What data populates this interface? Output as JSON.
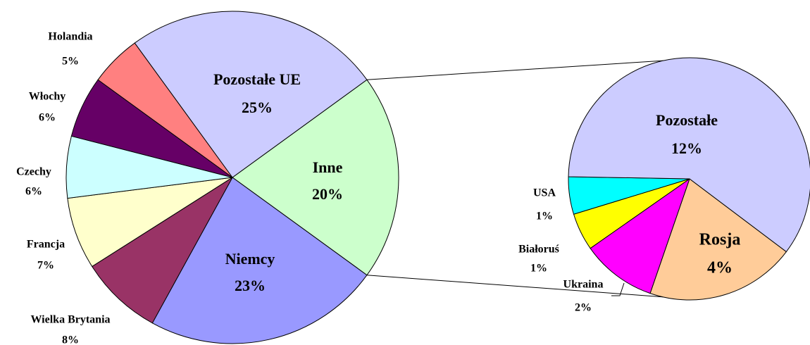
{
  "chart_data": [
    {
      "type": "pie",
      "categories": [
        "Inne",
        "Niemcy",
        "Wielka Brytania",
        "Francja",
        "Czechy",
        "Włochy",
        "Holandia",
        "Pozostałe UE"
      ],
      "values": [
        20,
        23,
        8,
        7,
        6,
        6,
        5,
        25
      ],
      "value_labels": [
        "20%",
        "23%",
        "8%",
        "7%",
        "6%",
        "6%",
        "5%",
        "25%"
      ],
      "colors": [
        "#ccffcc",
        "#9999ff",
        "#993366",
        "#ffffcc",
        "#ccffff",
        "#660066",
        "#ff8080",
        "#ccccff"
      ]
    },
    {
      "type": "pie",
      "categories": [
        "Rosja",
        "Ukraina",
        "Białoruś",
        "USA",
        "Pozostałe"
      ],
      "values": [
        4,
        2,
        1,
        1,
        12
      ],
      "value_labels": [
        "4%",
        "2%",
        "1%",
        "1%",
        "12%"
      ],
      "colors": [
        "#ffcc99",
        "#ff00ff",
        "#ffff00",
        "#00ffff",
        "#ccccff"
      ]
    }
  ]
}
